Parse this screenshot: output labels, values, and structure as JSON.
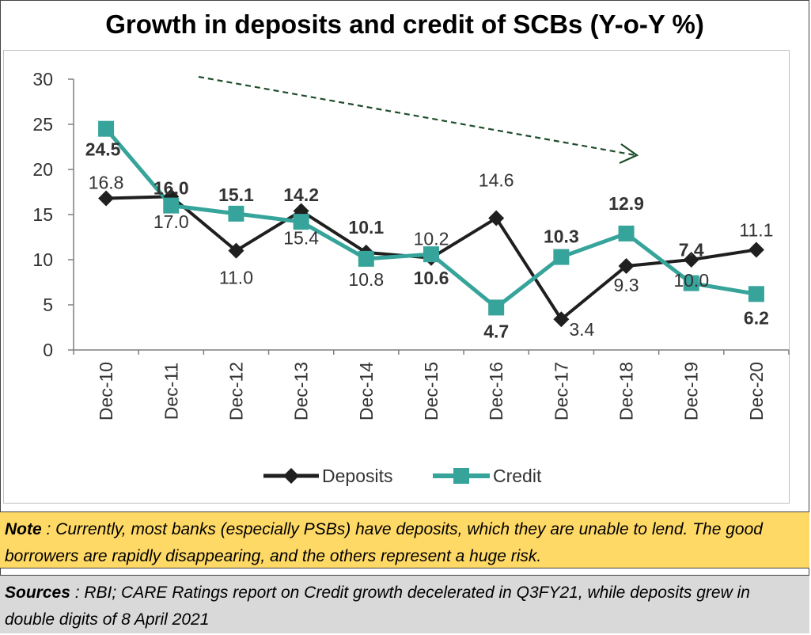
{
  "title": "Growth in deposits and credit of SCBs (Y-o-Y %)",
  "chart_data": {
    "type": "line",
    "title": "Growth in deposits and credit of SCBs (Y-o-Y %)",
    "categories": [
      "Dec-10",
      "Dec-11",
      "Dec-12",
      "Dec-13",
      "Dec-14",
      "Dec-15",
      "Dec-16",
      "Dec-17",
      "Dec-18",
      "Dec-19",
      "Dec-20"
    ],
    "ylim": [
      0,
      30
    ],
    "yticks": [
      "0",
      "5",
      "10",
      "15",
      "20",
      "25",
      "30"
    ],
    "grid": false,
    "legend_position": "bottom",
    "series": [
      {
        "name": "Deposits",
        "color": "#1f1f1f",
        "marker": "diamond",
        "values": [
          16.8,
          17.0,
          11.0,
          15.4,
          10.8,
          10.2,
          14.6,
          3.4,
          9.3,
          10.0,
          11.1
        ],
        "labels": [
          "16.8",
          "17.0",
          "11.0",
          "15.4",
          "10.8",
          "10.2",
          "14.6",
          "3.4",
          "9.3",
          "10.0",
          "11.1"
        ]
      },
      {
        "name": "Credit",
        "color": "#36a49a",
        "marker": "square",
        "values": [
          24.5,
          16.0,
          15.1,
          14.2,
          10.1,
          10.6,
          4.7,
          10.3,
          12.9,
          7.4,
          6.2
        ],
        "labels": [
          "24.5",
          "16.0",
          "15.1",
          "14.2",
          "10.1",
          "10.6",
          "4.7",
          "10.3",
          "12.9",
          "7.4",
          "6.2"
        ]
      }
    ],
    "annotation": "trend-arrow-down",
    "annotation_color": "#1e4d2b"
  },
  "note": {
    "label": "Note",
    "text": " : Currently, most banks (especially PSBs) have deposits, which they are unable to lend.  The good borrowers are rapidly disappearing, and the others represent a huge risk."
  },
  "sources": {
    "label": "Sources",
    "text": " : RBI; CARE Ratings report on Credit growth decelerated in Q3FY21, while deposits grew in double digits of 8 April 2021"
  }
}
